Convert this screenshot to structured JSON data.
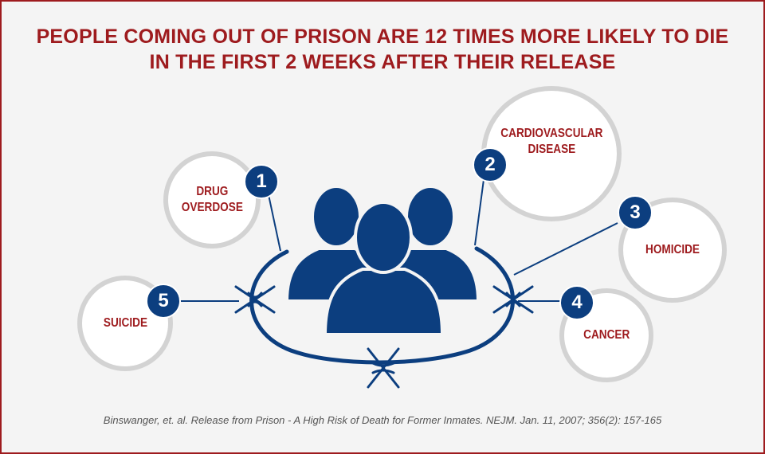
{
  "title": {
    "line1": "PEOPLE COMING OUT OF PRISON ARE 12 TIMES MORE LIKELY TO DIE",
    "line2": "IN THE FIRST 2 WEEKS AFTER THEIR RELEASE"
  },
  "causes": [
    {
      "number": "1",
      "label": "DRUG\nOVERDOSE"
    },
    {
      "number": "2",
      "label": "CARDIOVASCULAR\nDISEASE"
    },
    {
      "number": "3",
      "label": "HOMICIDE"
    },
    {
      "number": "4",
      "label": "CANCER"
    },
    {
      "number": "5",
      "label": "SUICIDE"
    }
  ],
  "citation": "Binswanger, et. al. Release from Prison - A High Risk of Death for Former Inmates. NEJM. Jan. 11, 2007; 356(2): 157-165",
  "colors": {
    "title": "#9e1b1e",
    "badge": "#0c3e7f",
    "bubble_border": "#d3d3d3",
    "people": "#0c3e7f"
  },
  "icons": [
    "people-group-icon",
    "barbed-wire-icon"
  ]
}
